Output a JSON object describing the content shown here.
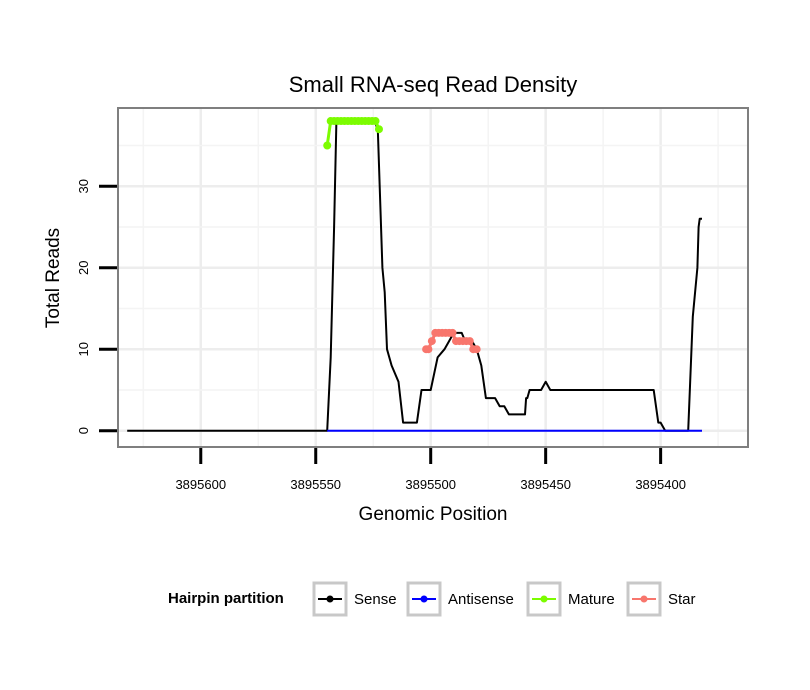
{
  "chart_data": {
    "type": "line",
    "title": "Small RNA-seq Read Density",
    "xlabel": "Genomic Position",
    "ylabel": "Total Reads",
    "xlim": [
      3895636,
      3895362
    ],
    "x_reversed": true,
    "ylim": [
      -2,
      39.6
    ],
    "grid": true,
    "x_ticks": [
      3895600,
      3895550,
      3895500,
      3895450,
      3895400
    ],
    "x_tick_labels": [
      "3895600",
      "3895550",
      "3895500",
      "3895450",
      "3895400"
    ],
    "y_ticks": [
      0,
      10,
      20,
      30
    ],
    "y_tick_labels": [
      "0",
      "10",
      "20",
      "30"
    ],
    "legend": {
      "title": "Hairpin partition",
      "position": "bottom",
      "entries": [
        {
          "name": "Sense",
          "color": "#000000"
        },
        {
          "name": "Antisense",
          "color": "#0000ff"
        },
        {
          "name": "Mature",
          "color": "#7cfc00"
        },
        {
          "name": "Star",
          "color": "#f8766d"
        }
      ]
    },
    "series": [
      {
        "name": "Sense",
        "color": "#000000",
        "style": "line",
        "x": [
          3895632,
          3895602,
          3895572,
          3895550,
          3895545,
          3895543.5,
          3895542,
          3895541,
          3895540,
          3895538,
          3895536,
          3895534,
          3895532,
          3895530,
          3895526,
          3895524.5,
          3895523,
          3895521,
          3895520,
          3895519,
          3895517,
          3895514,
          3895512,
          3895510,
          3895508,
          3895506,
          3895505,
          3895504,
          3895502,
          3895500,
          3895497,
          3895494,
          3895492,
          3895490,
          3895488,
          3895486.5,
          3895485,
          3895484,
          3895483,
          3895482,
          3895480,
          3895478,
          3895476,
          3895474,
          3895472,
          3895470,
          3895468,
          3895466,
          3895465,
          3895463,
          3895461,
          3895459,
          3895458.5,
          3895458,
          3895457,
          3895456,
          3895454,
          3895452,
          3895450,
          3895448,
          3895446,
          3895445,
          3895444,
          3895442,
          3895441,
          3895440,
          3895438,
          3895436,
          3895433,
          3895428,
          3895424,
          3895423,
          3895422,
          3895421,
          3895420,
          3895419,
          3895418,
          3895416,
          3895412,
          3895410,
          3895408,
          3895403,
          3895401,
          3895400,
          3895398,
          3895396,
          3895392,
          3895388,
          3895386,
          3895384,
          3895383.5,
          3895383,
          3895382
        ],
        "values": [
          0,
          0,
          0,
          0,
          0,
          9,
          25,
          38,
          38,
          38,
          38,
          38,
          38,
          38,
          38,
          38,
          37,
          20,
          17,
          10,
          8,
          6,
          1,
          1,
          1,
          1,
          3,
          5,
          5,
          5,
          9,
          10,
          11,
          12,
          12,
          12,
          11,
          11,
          11,
          11,
          10,
          8,
          4,
          4,
          4,
          3,
          3,
          2,
          2,
          2,
          2,
          2,
          4,
          4,
          5,
          5,
          5,
          5,
          6,
          5,
          5,
          5,
          5,
          5,
          5,
          5,
          5,
          5,
          5,
          5,
          5,
          5,
          5,
          5,
          5,
          5,
          5,
          5,
          5,
          5,
          5,
          5,
          1,
          1,
          0,
          0,
          0,
          0,
          14,
          20,
          25,
          26,
          26
        ]
      },
      {
        "name": "Antisense",
        "color": "#0000ff",
        "style": "line",
        "x": [
          3895545,
          3895382
        ],
        "values": [
          0,
          0
        ]
      },
      {
        "name": "Mature",
        "color": "#7cfc00",
        "style": "points",
        "x": [
          3895545,
          3895543.5,
          3895542,
          3895540.5,
          3895539,
          3895537.5,
          3895536,
          3895534.5,
          3895533,
          3895531.5,
          3895530,
          3895528.5,
          3895527,
          3895525.5,
          3895524,
          3895522.5
        ],
        "values": [
          35,
          38,
          38,
          38,
          38,
          38,
          38,
          38,
          38,
          38,
          38,
          38,
          38,
          38,
          38,
          37
        ]
      },
      {
        "name": "Star",
        "color": "#f8766d",
        "style": "points",
        "x": [
          3895502,
          3895501,
          3895499.5,
          3895498,
          3895496.5,
          3895495,
          3895493.5,
          3895492,
          3895490.5,
          3895489,
          3895487.5,
          3895486,
          3895484.5,
          3895483,
          3895481.5,
          3895480
        ],
        "values": [
          10,
          10,
          11,
          12,
          12,
          12,
          12,
          12,
          12,
          11,
          11,
          11,
          11,
          11,
          10,
          10
        ]
      }
    ]
  }
}
